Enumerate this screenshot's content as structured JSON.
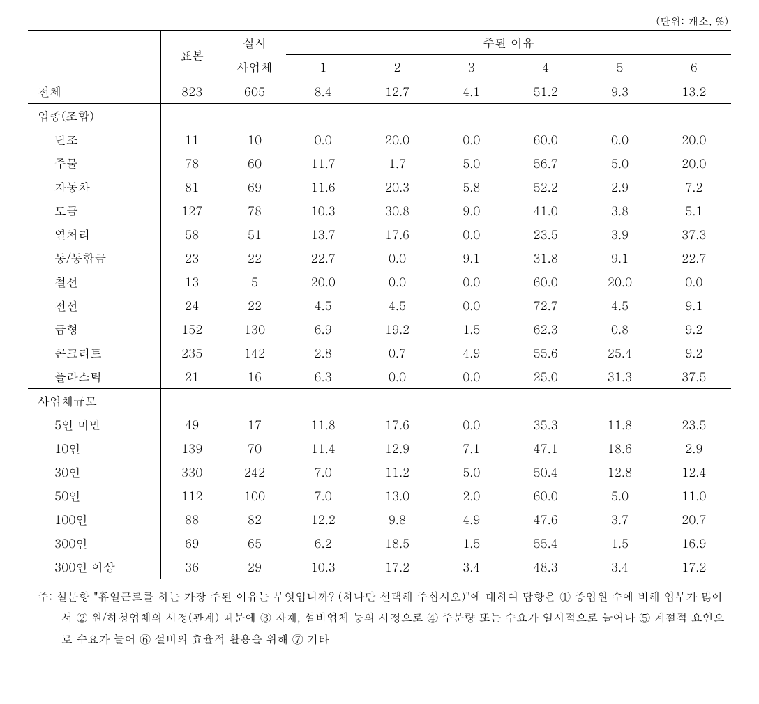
{
  "unit_label": "(단위: 개소, %)",
  "header": {
    "col_sample": "표본",
    "col_impl": "실시",
    "col_impl2": "사업체",
    "reason_group": "주된 이유",
    "reasons": [
      "1",
      "2",
      "3",
      "4",
      "5",
      "6"
    ]
  },
  "total_label": "전체",
  "total_row": [
    "823",
    "605",
    "8.4",
    "12.7",
    "4.1",
    "51.2",
    "9.3",
    "13.2"
  ],
  "section1_label": "업종(조합)",
  "section1_rows": [
    {
      "label": "단조",
      "v": [
        "11",
        "10",
        "0.0",
        "20.0",
        "0.0",
        "60.0",
        "0.0",
        "20.0"
      ]
    },
    {
      "label": "주물",
      "v": [
        "78",
        "60",
        "11.7",
        "1.7",
        "5.0",
        "56.7",
        "5.0",
        "20.0"
      ]
    },
    {
      "label": "자동차",
      "v": [
        "81",
        "69",
        "11.6",
        "20.3",
        "5.8",
        "52.2",
        "2.9",
        "7.2"
      ]
    },
    {
      "label": "도금",
      "v": [
        "127",
        "78",
        "10.3",
        "30.8",
        "9.0",
        "41.0",
        "3.8",
        "5.1"
      ]
    },
    {
      "label": "열처리",
      "v": [
        "58",
        "51",
        "13.7",
        "17.6",
        "0.0",
        "23.5",
        "3.9",
        "37.3"
      ]
    },
    {
      "label": "동/동합금",
      "v": [
        "23",
        "22",
        "22.7",
        "0.0",
        "9.1",
        "31.8",
        "9.1",
        "22.7"
      ]
    },
    {
      "label": "철선",
      "v": [
        "13",
        "5",
        "20.0",
        "0.0",
        "0.0",
        "60.0",
        "20.0",
        "0.0"
      ]
    },
    {
      "label": "전선",
      "v": [
        "24",
        "22",
        "4.5",
        "4.5",
        "0.0",
        "72.7",
        "4.5",
        "9.1"
      ]
    },
    {
      "label": "금형",
      "v": [
        "152",
        "130",
        "6.9",
        "19.2",
        "1.5",
        "62.3",
        "0.8",
        "9.2"
      ]
    },
    {
      "label": "콘크리트",
      "v": [
        "235",
        "142",
        "2.8",
        "0.7",
        "4.9",
        "55.6",
        "25.4",
        "9.2"
      ]
    },
    {
      "label": "플라스틱",
      "v": [
        "21",
        "16",
        "6.3",
        "0.0",
        "0.0",
        "25.0",
        "31.3",
        "37.5"
      ]
    }
  ],
  "section2_label": "사업체규모",
  "section2_rows": [
    {
      "label": "5인 미만",
      "v": [
        "49",
        "17",
        "11.8",
        "17.6",
        "0.0",
        "35.3",
        "11.8",
        "23.5"
      ]
    },
    {
      "label": "10인",
      "v": [
        "139",
        "70",
        "11.4",
        "12.9",
        "7.1",
        "47.1",
        "18.6",
        "2.9"
      ]
    },
    {
      "label": "30인",
      "v": [
        "330",
        "242",
        "7.0",
        "11.2",
        "5.0",
        "50.4",
        "12.8",
        "12.4"
      ]
    },
    {
      "label": "50인",
      "v": [
        "112",
        "100",
        "7.0",
        "13.0",
        "2.0",
        "60.0",
        "5.0",
        "11.0"
      ]
    },
    {
      "label": "100인",
      "v": [
        "88",
        "82",
        "12.2",
        "9.8",
        "4.9",
        "47.6",
        "3.7",
        "20.7"
      ]
    },
    {
      "label": "300인",
      "v": [
        "69",
        "65",
        "6.2",
        "18.5",
        "1.5",
        "55.4",
        "1.5",
        "16.9"
      ]
    },
    {
      "label": "300인 이상",
      "v": [
        "36",
        "29",
        "10.3",
        "17.2",
        "3.4",
        "48.3",
        "3.4",
        "17.2"
      ]
    }
  ],
  "footnote": "주: 설문항 \"휴일근로를 하는 가장 주된 이유는 무엇입니까? (하나만 선택해 주십시오)\"에 대하여 답항은 ① 종업원 수에 비해 업무가 많아서 ② 원/하청업체의 사정(관계) 때문에 ③ 자재, 설비업체 등의 사정으로 ④ 주문량 또는 수요가 일시적으로 늘어나 ⑤ 계절적 요인으로 수요가 늘어 ⑥ 설비의 효율적 활용을 위해 ⑦ 기타"
}
